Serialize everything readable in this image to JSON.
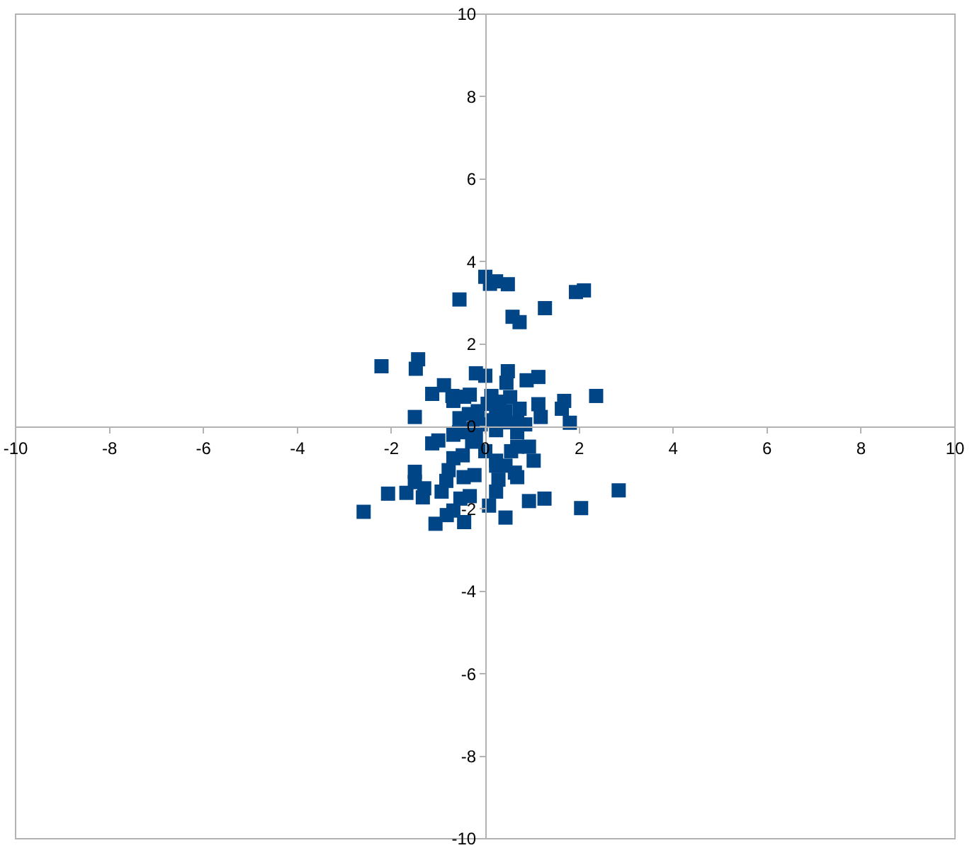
{
  "chart_data": {
    "type": "scatter",
    "x": [
      0.0,
      0.1,
      0.23,
      0.48,
      -0.55,
      0.58,
      0.73,
      1.27,
      1.93,
      2.1,
      -2.21,
      -1.43,
      -1.48,
      -0.2,
      0.0,
      0.48,
      0.45,
      0.88,
      1.13,
      -0.88,
      -1.13,
      -0.7,
      -0.68,
      -0.33,
      -0.45,
      0.13,
      0.53,
      0.73,
      1.13,
      1.18,
      1.68,
      1.63,
      1.8,
      2.36,
      -1.5,
      -0.16,
      0.23,
      0.43,
      0.68,
      -0.1,
      0.05,
      0.3,
      0.85,
      -0.55,
      -0.35,
      0.15,
      0.4,
      -0.25,
      -1.0,
      -1.13,
      -0.68,
      -0.56,
      -0.38,
      -0.28,
      -0.2,
      0.23,
      0.68,
      0.68,
      0.93,
      1.03,
      0.23,
      0.23,
      0.43,
      0.63,
      0.68,
      0.28,
      0.23,
      0.08,
      0.43,
      0.93,
      1.26,
      2.04,
      2.84,
      -2.59,
      -2.07,
      -1.68,
      -1.33,
      -1.5,
      -1.5,
      -0.93,
      -0.83,
      -0.78,
      -0.68,
      -0.46,
      -0.23,
      -0.33,
      -0.53,
      -0.68,
      -0.45,
      -1.06,
      -0.82,
      -0.48,
      0.0,
      0.55,
      -1.3
    ],
    "values": [
      3.63,
      3.46,
      3.52,
      3.45,
      3.08,
      2.66,
      2.53,
      2.87,
      3.26,
      3.3,
      1.46,
      1.63,
      1.4,
      1.29,
      1.23,
      1.34,
      1.06,
      1.12,
      1.2,
      1.0,
      0.79,
      0.74,
      0.62,
      0.77,
      0.72,
      0.74,
      0.71,
      0.43,
      0.54,
      0.23,
      0.62,
      0.43,
      0.09,
      0.74,
      0.23,
      0.37,
      0.31,
      0.37,
      0.09,
      0.05,
      0.55,
      0.6,
      0.05,
      0.2,
      0.3,
      0.15,
      0.1,
      -0.05,
      -0.34,
      -0.41,
      -0.2,
      -0.14,
      -0.09,
      -0.37,
      -0.29,
      -0.09,
      -0.14,
      -0.49,
      -0.49,
      -0.83,
      -0.83,
      -0.95,
      -0.95,
      -1.12,
      -1.23,
      -1.29,
      -1.58,
      -1.92,
      -2.21,
      -1.81,
      -1.75,
      -1.98,
      -1.55,
      -2.07,
      -1.63,
      -1.61,
      -1.72,
      -1.1,
      -1.35,
      -1.58,
      -1.32,
      -1.06,
      -0.77,
      -1.23,
      -1.18,
      -1.69,
      -1.75,
      -2.04,
      -2.32,
      -2.36,
      -2.15,
      -0.7,
      -0.6,
      -0.6,
      -1.5
    ],
    "color": "#004586",
    "marker": "square",
    "xlim": [
      -10,
      10
    ],
    "ylim": [
      -10,
      10
    ],
    "xticks": [
      -10,
      -8,
      -6,
      -4,
      -2,
      0,
      2,
      4,
      6,
      8,
      10
    ],
    "yticks": [
      -10,
      -8,
      -6,
      -4,
      -2,
      0,
      2,
      4,
      6,
      8,
      10
    ],
    "grid": false
  }
}
